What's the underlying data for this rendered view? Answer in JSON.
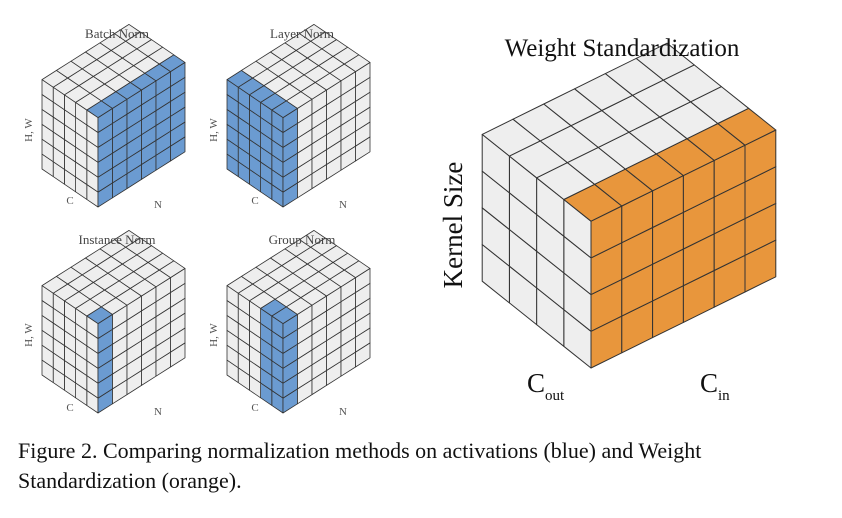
{
  "panels": [
    {
      "id": "batch-norm",
      "title": "Batch Norm",
      "axis_left": "H, W",
      "axis_c": "C",
      "axis_n": "N"
    },
    {
      "id": "layer-norm",
      "title": "Layer Norm",
      "axis_left": "H, W",
      "axis_c": "C",
      "axis_n": "N"
    },
    {
      "id": "instance-norm",
      "title": "Instance Norm",
      "axis_left": "H, W",
      "axis_c": "C",
      "axis_n": "N"
    },
    {
      "id": "group-norm",
      "title": "Group Norm",
      "axis_left": "H, W",
      "axis_c": "C",
      "axis_n": "N"
    }
  ],
  "weight": {
    "title": "Weight Standardization",
    "axis_left": "Kernel Size",
    "axis_cout_main": "C",
    "axis_cout_sub": "out",
    "axis_cin_main": "C",
    "axis_cin_sub": "in"
  },
  "caption": "Figure 2. Comparing normalization methods on activations (blue) and Weight Standardization (orange).",
  "colors": {
    "blue": "#6b9bd1",
    "orange": "#e8963c",
    "gray": "#eeeeee",
    "edge": "#333333"
  }
}
